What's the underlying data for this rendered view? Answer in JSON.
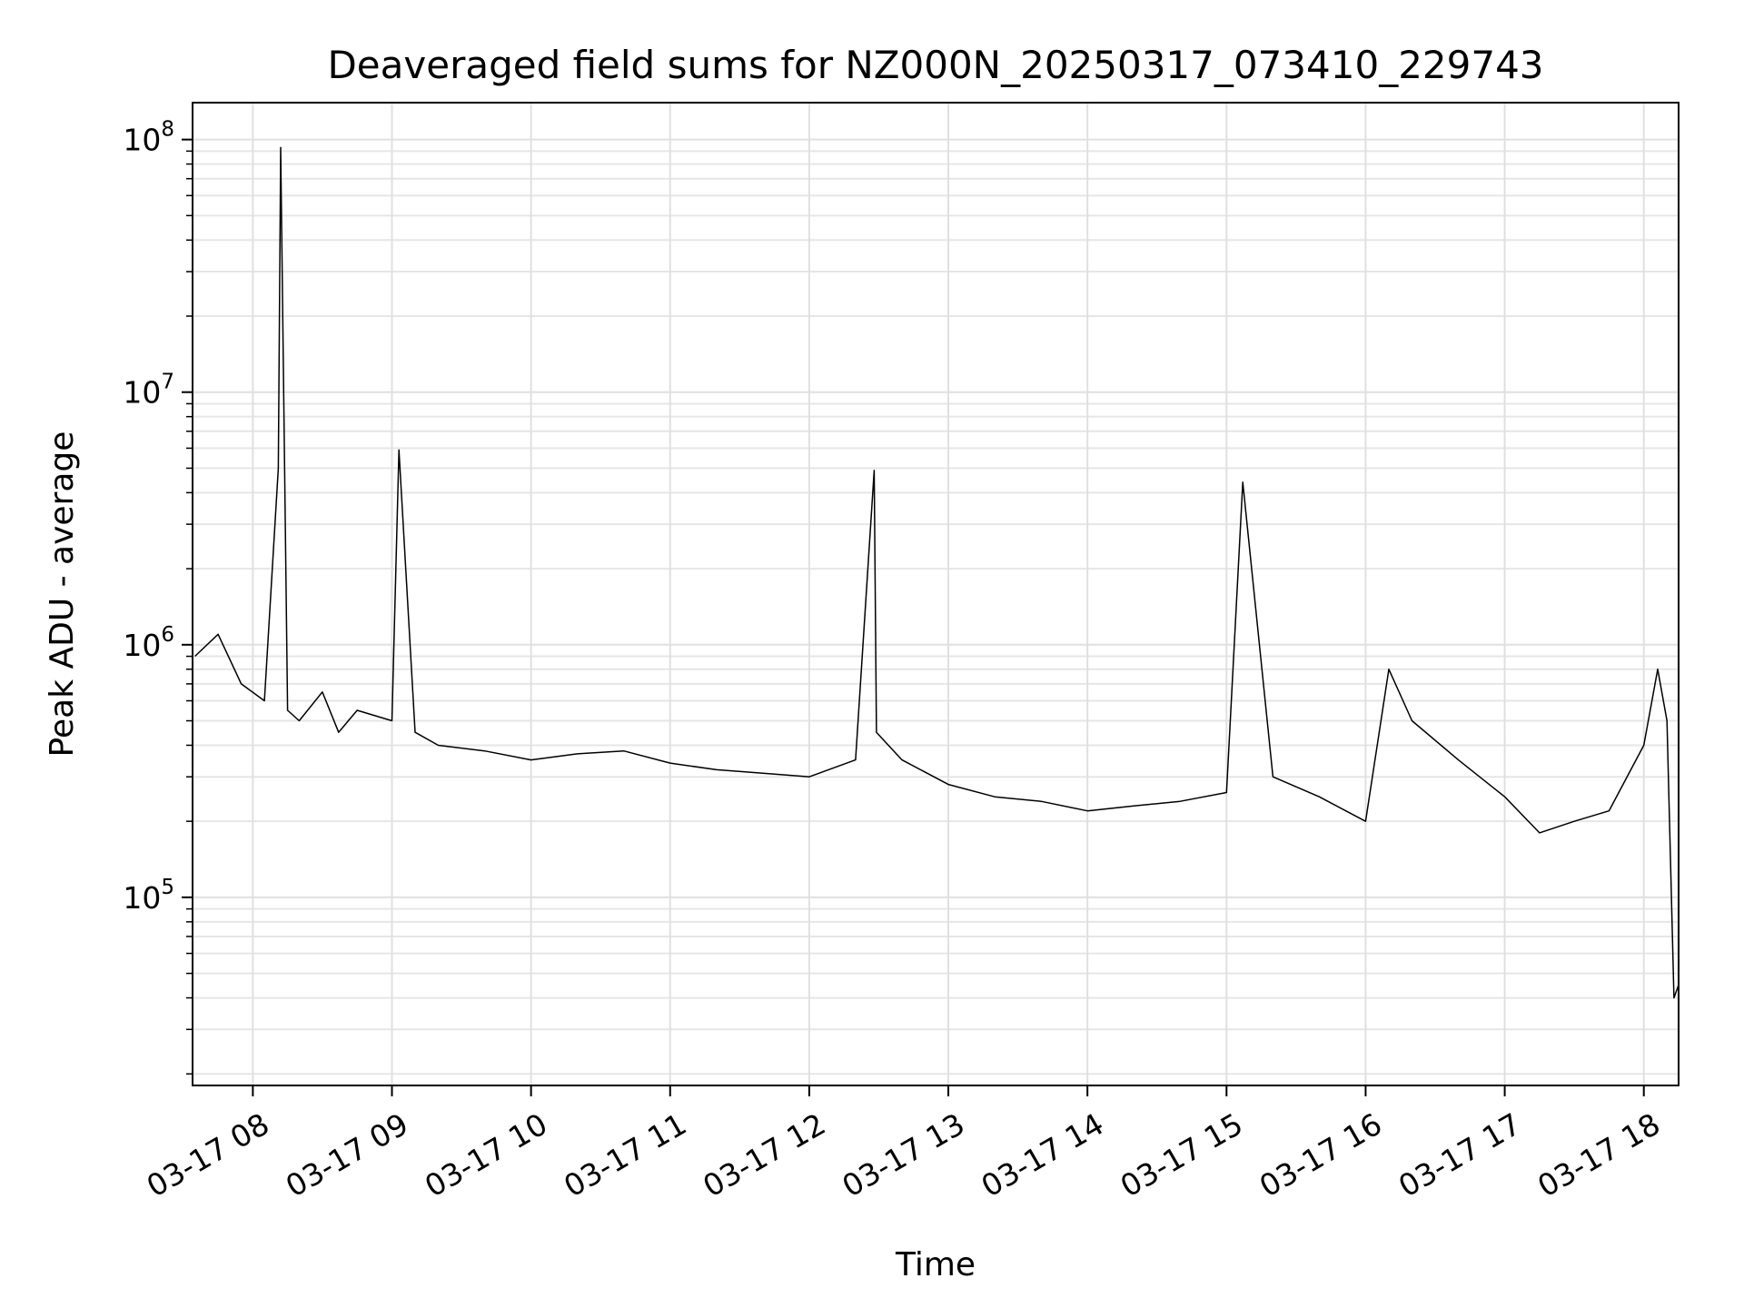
{
  "chart_data": {
    "type": "line",
    "title": "Deaveraged field sums for NZ000N_20250317_073410_229743",
    "xlabel": "Time",
    "ylabel": "Peak ADU - average",
    "x_unit": "hours",
    "xlim": [
      "03-17 07:34",
      "03-17 18:15"
    ],
    "ylim": [
      18000,
      140000000
    ],
    "yscale": "log",
    "grid": true,
    "line_color": "#000000",
    "x_ticks": [
      "03-17 08",
      "03-17 09",
      "03-17 10",
      "03-17 11",
      "03-17 12",
      "03-17 13",
      "03-17 14",
      "03-17 15",
      "03-17 16",
      "03-17 17",
      "03-17 18"
    ],
    "y_ticks": [
      {
        "value": 100000,
        "base": "10",
        "exp": "5"
      },
      {
        "value": 1000000,
        "base": "10",
        "exp": "6"
      },
      {
        "value": 10000000,
        "base": "10",
        "exp": "7"
      },
      {
        "value": 100000000,
        "base": "10",
        "exp": "8"
      }
    ],
    "series": [
      {
        "x": [
          "03-17 07:35",
          "03-17 07:45",
          "03-17 07:55",
          "03-17 08:05",
          "03-17 08:11",
          "03-17 08:12",
          "03-17 08:15",
          "03-17 08:20",
          "03-17 08:30",
          "03-17 08:37",
          "03-17 08:45",
          "03-17 09:00",
          "03-17 09:03",
          "03-17 09:10",
          "03-17 09:20",
          "03-17 09:40",
          "03-17 10:00",
          "03-17 10:20",
          "03-17 10:40",
          "03-17 11:00",
          "03-17 11:20",
          "03-17 11:40",
          "03-17 12:00",
          "03-17 12:20",
          "03-17 12:28",
          "03-17 12:29",
          "03-17 12:40",
          "03-17 13:00",
          "03-17 13:20",
          "03-17 13:40",
          "03-17 14:00",
          "03-17 14:20",
          "03-17 14:40",
          "03-17 15:00",
          "03-17 15:07",
          "03-17 15:20",
          "03-17 15:40",
          "03-17 16:00",
          "03-17 16:10",
          "03-17 16:20",
          "03-17 16:40",
          "03-17 17:00",
          "03-17 17:15",
          "03-17 17:30",
          "03-17 17:45",
          "03-17 18:00",
          "03-17 18:06",
          "03-17 18:10",
          "03-17 18:13",
          "03-17 18:15"
        ],
        "y": [
          900000,
          1100000,
          700000,
          600000,
          5000000,
          93000000,
          550000,
          500000,
          650000,
          450000,
          550000,
          500000,
          5900000,
          450000,
          400000,
          380000,
          350000,
          370000,
          380000,
          340000,
          320000,
          310000,
          300000,
          350000,
          4900000,
          450000,
          350000,
          280000,
          250000,
          240000,
          220000,
          230000,
          240000,
          260000,
          4400000,
          300000,
          250000,
          200000,
          800000,
          500000,
          350000,
          250000,
          180000,
          200000,
          220000,
          400000,
          800000,
          500000,
          40000,
          45000
        ]
      }
    ]
  }
}
